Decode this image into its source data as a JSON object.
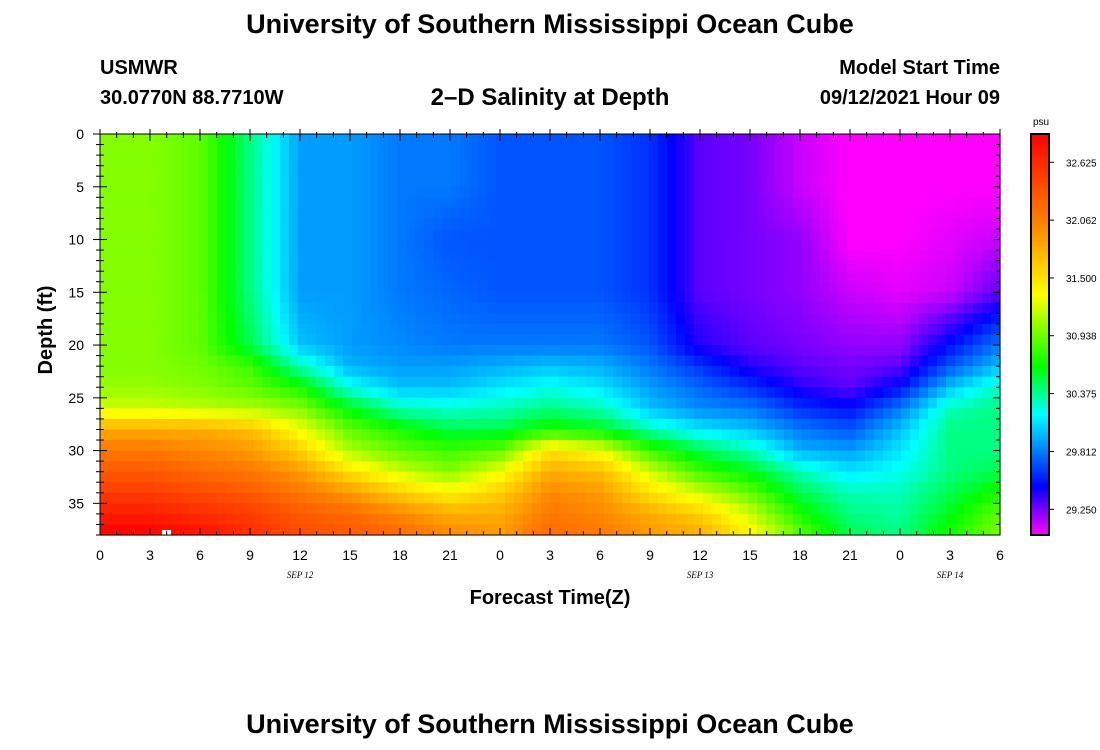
{
  "header": {
    "title": "University of Southern Mississippi Ocean Cube",
    "station": "USMWR",
    "coordinates": "30.0770N  88.7710W",
    "chart_title": "2–D Salinity at Depth",
    "model_start_label": "Model Start Time",
    "model_start_value": "09/12/2021 Hour 09"
  },
  "footer": {
    "title": "University of Southern Mississippi Ocean Cube"
  },
  "chart_data": {
    "type": "heatmap",
    "title": "2–D Salinity at Depth",
    "xlabel": "Forecast Time(Z)",
    "ylabel": "Depth (ft)",
    "x_range_hours": [
      0,
      54
    ],
    "x_ticks": [
      "0",
      "3",
      "6",
      "9",
      "12",
      "15",
      "18",
      "21",
      "0",
      "3",
      "6",
      "9",
      "12",
      "15",
      "18",
      "21",
      "0",
      "3",
      "6"
    ],
    "date_labels": [
      {
        "label": "SEP 12",
        "at_hour": 12
      },
      {
        "label": "SEP 13",
        "at_hour": 36
      },
      {
        "label": "SEP 14",
        "at_hour": 51
      }
    ],
    "ylim": [
      0,
      38
    ],
    "y_ticks": [
      0,
      5,
      10,
      15,
      20,
      25,
      30,
      35
    ],
    "colorbar": {
      "unit": "psu",
      "range": [
        29.0,
        32.9
      ],
      "ticks": [
        32.625,
        32.062,
        31.5,
        30.938,
        30.375,
        29.812,
        29.25
      ],
      "colors": [
        "#ff00ff",
        "#0000ff",
        "#00ffff",
        "#00ff00",
        "#ffff00",
        "#ff8000",
        "#ff0000"
      ]
    },
    "depths_ft": [
      0,
      5,
      10,
      15,
      20,
      22,
      24,
      26,
      28,
      30,
      32,
      34,
      36,
      38
    ],
    "times_hours": [
      0,
      3,
      6,
      9,
      12,
      15,
      18,
      21,
      24,
      27,
      30,
      33,
      36,
      39,
      42,
      45,
      48,
      51,
      54
    ],
    "salinity_psu": [
      [
        31.0,
        31.0,
        30.9,
        30.4,
        29.9,
        29.9,
        29.8,
        29.8,
        29.7,
        29.7,
        29.7,
        29.6,
        29.3,
        29.25,
        29.1,
        29.0,
        29.0,
        29.0,
        29.0
      ],
      [
        31.0,
        31.0,
        30.9,
        30.4,
        29.9,
        29.9,
        29.8,
        29.8,
        29.7,
        29.7,
        29.7,
        29.6,
        29.3,
        29.25,
        29.1,
        29.0,
        29.0,
        29.0,
        29.0
      ],
      [
        31.0,
        31.0,
        30.9,
        30.4,
        29.9,
        29.9,
        29.8,
        29.7,
        29.7,
        29.7,
        29.7,
        29.6,
        29.3,
        29.25,
        29.2,
        29.0,
        29.0,
        29.05,
        29.1
      ],
      [
        31.0,
        31.0,
        30.9,
        30.4,
        29.9,
        29.9,
        29.8,
        29.75,
        29.7,
        29.7,
        29.7,
        29.6,
        29.3,
        29.25,
        29.2,
        29.1,
        29.05,
        29.1,
        29.3
      ],
      [
        31.0,
        31.0,
        30.9,
        30.5,
        30.0,
        29.9,
        29.85,
        29.8,
        29.8,
        29.8,
        29.8,
        29.7,
        29.4,
        29.3,
        29.25,
        29.2,
        29.2,
        29.5,
        29.8
      ],
      [
        31.0,
        31.0,
        30.95,
        30.8,
        30.3,
        29.95,
        29.9,
        29.9,
        29.95,
        30.0,
        29.95,
        29.8,
        29.6,
        29.4,
        29.3,
        29.25,
        29.3,
        29.7,
        30.0
      ],
      [
        31.05,
        31.05,
        31.0,
        30.9,
        30.7,
        30.2,
        30.0,
        30.0,
        30.1,
        30.2,
        30.1,
        29.9,
        29.75,
        29.6,
        29.4,
        29.3,
        29.5,
        30.0,
        30.3
      ],
      [
        31.2,
        31.2,
        31.15,
        31.1,
        31.0,
        30.6,
        30.3,
        30.25,
        30.3,
        30.4,
        30.3,
        30.0,
        29.85,
        29.8,
        29.6,
        29.5,
        29.8,
        30.3,
        30.4
      ],
      [
        31.8,
        31.8,
        31.8,
        31.7,
        31.3,
        30.9,
        30.7,
        30.5,
        30.5,
        30.7,
        30.6,
        30.3,
        30.1,
        30.0,
        29.8,
        29.7,
        30.0,
        30.4,
        30.4
      ],
      [
        32.1,
        32.1,
        32.0,
        31.9,
        31.6,
        31.1,
        30.9,
        30.8,
        30.9,
        31.5,
        31.3,
        30.8,
        30.5,
        30.3,
        29.95,
        29.9,
        30.1,
        30.4,
        30.4
      ],
      [
        32.3,
        32.3,
        32.2,
        32.1,
        31.9,
        31.5,
        31.2,
        31.0,
        31.3,
        31.8,
        31.7,
        31.2,
        30.8,
        30.6,
        30.3,
        30.1,
        30.2,
        30.4,
        30.5
      ],
      [
        32.5,
        32.5,
        32.4,
        32.3,
        32.1,
        31.9,
        31.6,
        31.4,
        31.6,
        32.0,
        31.9,
        31.5,
        31.2,
        30.9,
        30.5,
        30.3,
        30.3,
        30.5,
        30.7
      ],
      [
        32.7,
        32.7,
        32.6,
        32.5,
        32.3,
        32.2,
        32.0,
        31.8,
        31.8,
        32.1,
        32.0,
        31.8,
        31.6,
        31.2,
        30.7,
        30.4,
        30.35,
        30.6,
        30.9
      ],
      [
        32.9,
        32.9,
        32.8,
        32.6,
        32.4,
        32.3,
        32.2,
        32.0,
        31.9,
        32.2,
        32.1,
        31.9,
        31.8,
        31.4,
        30.9,
        30.5,
        30.4,
        30.7,
        31.0
      ]
    ]
  }
}
